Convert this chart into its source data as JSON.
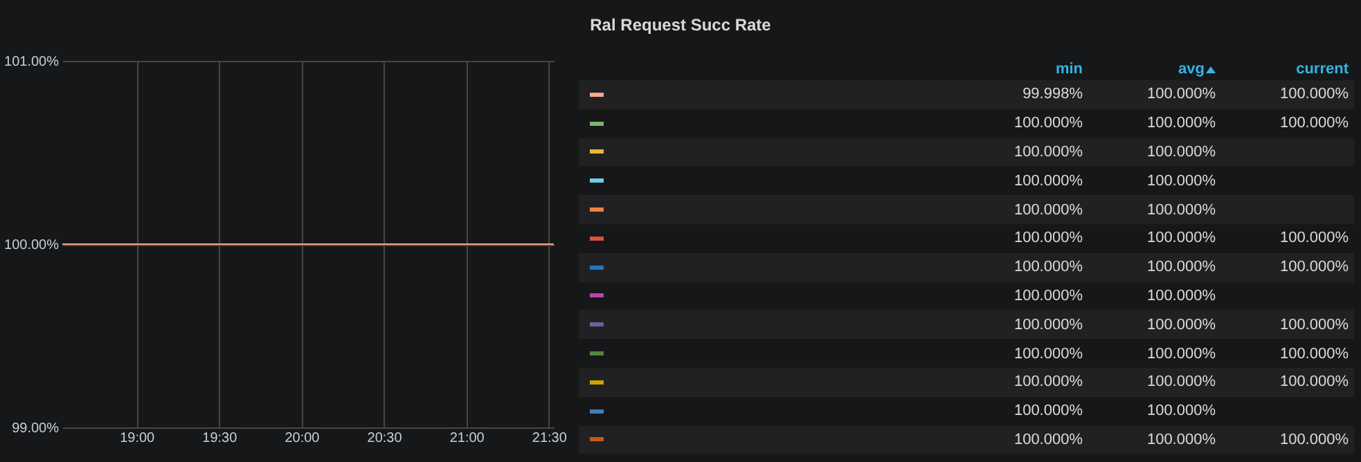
{
  "chart_data": {
    "type": "line",
    "title": "Ral Request Succ Rate",
    "xlim": [
      18.55,
      21.53
    ],
    "xticks": [
      {
        "value": 19,
        "label": "19:00"
      },
      {
        "value": 19.5,
        "label": "19:30"
      },
      {
        "value": 20,
        "label": "20:00"
      },
      {
        "value": 20.5,
        "label": "20:30"
      },
      {
        "value": 21,
        "label": "21:00"
      },
      {
        "value": 21.5,
        "label": "21:30"
      }
    ],
    "ylim": [
      99,
      101
    ],
    "yticks": [
      {
        "value": 99,
        "label": "99.00%"
      },
      {
        "value": 100,
        "label": "100.00%"
      },
      {
        "value": 101,
        "label": "101.00%"
      }
    ],
    "grid": true,
    "x": [
      18.55,
      21.53
    ],
    "series": [
      {
        "color": "#f9a98a",
        "values": [
          100,
          100
        ]
      },
      {
        "color": "#7eb26d",
        "values": [
          null,
          null
        ]
      },
      {
        "color": "#eab839",
        "values": [
          null,
          null
        ]
      },
      {
        "color": "#6ed0e0",
        "values": [
          null,
          null
        ]
      },
      {
        "color": "#ef843c",
        "values": [
          null,
          null
        ]
      },
      {
        "color": "#e24d42",
        "values": [
          null,
          null
        ]
      },
      {
        "color": "#1f78c1",
        "values": [
          null,
          null
        ]
      },
      {
        "color": "#ba43a9",
        "values": [
          null,
          null
        ]
      },
      {
        "color": "#705da0",
        "values": [
          null,
          null
        ]
      },
      {
        "color": "#508642",
        "values": [
          null,
          null
        ]
      },
      {
        "color": "#cca300",
        "values": [
          null,
          null
        ]
      },
      {
        "color": "#447ebc",
        "values": [
          null,
          null
        ]
      },
      {
        "color": "#c15c17",
        "values": [
          null,
          null
        ]
      }
    ],
    "annotations": [
      "min",
      "avg",
      "current",
      "99.998%  100.000%  100.000%",
      "100.000%  100.000%  100.000%",
      "100.000%  100.000%",
      "100.000%  100.000%",
      "100.000%  100.000%",
      "100.000%  100.000%  100.000%",
      "100.000%  100.000%  100.000%",
      "100.000%  100.000%",
      "100.000%  100.000%  100.000%",
      "100.000%  100.000%  100.000%",
      "100.000%  100.000%  100.000%",
      "100.000%  100.000%",
      "100.000%  100.000%  100.000%"
    ]
  }
}
